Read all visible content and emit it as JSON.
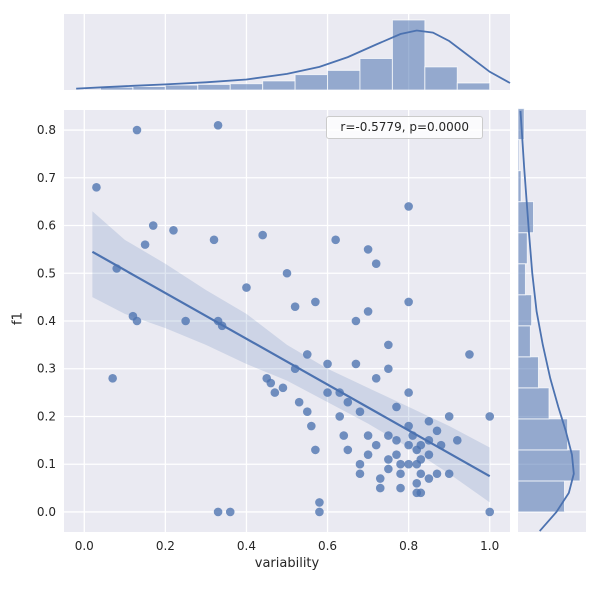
{
  "figure": {
    "colors": {
      "panel_bg": "#eaeaf2",
      "grid": "#ffffff",
      "accent": "#4c72b0",
      "scatter": "#4c72b0",
      "band": "rgba(76,114,176,0.18)",
      "hist_fill": "rgba(76,114,176,0.55)",
      "hist_edge": "rgba(255,255,255,0.7)",
      "tick_text": "#262626"
    }
  },
  "annotation": {
    "label": "r=-0.5779, p=0.0000"
  },
  "chart_data": {
    "type": "scatter",
    "title": "",
    "xlabel": "variability",
    "ylabel": "f1",
    "xlim": [
      -0.05,
      1.05
    ],
    "ylim": [
      -0.042,
      0.842
    ],
    "xticks": [
      0.0,
      0.2,
      0.4,
      0.6,
      0.8,
      1.0
    ],
    "yticks": [
      0.0,
      0.1,
      0.2,
      0.3,
      0.4,
      0.5,
      0.6,
      0.7,
      0.8
    ],
    "grid": true,
    "legend_position": "none",
    "points": [
      [
        0.03,
        0.68
      ],
      [
        0.07,
        0.28
      ],
      [
        0.08,
        0.51
      ],
      [
        0.12,
        0.41
      ],
      [
        0.13,
        0.8
      ],
      [
        0.13,
        0.4
      ],
      [
        0.15,
        0.56
      ],
      [
        0.17,
        0.6
      ],
      [
        0.22,
        0.59
      ],
      [
        0.25,
        0.4
      ],
      [
        0.32,
        0.57
      ],
      [
        0.33,
        0.81
      ],
      [
        0.33,
        0.4
      ],
      [
        0.34,
        0.39
      ],
      [
        0.33,
        0.0
      ],
      [
        0.36,
        0.0
      ],
      [
        0.4,
        0.47
      ],
      [
        0.44,
        0.58
      ],
      [
        0.45,
        0.28
      ],
      [
        0.46,
        0.27
      ],
      [
        0.47,
        0.25
      ],
      [
        0.49,
        0.26
      ],
      [
        0.5,
        0.5
      ],
      [
        0.52,
        0.43
      ],
      [
        0.52,
        0.3
      ],
      [
        0.53,
        0.23
      ],
      [
        0.55,
        0.33
      ],
      [
        0.55,
        0.21
      ],
      [
        0.56,
        0.18
      ],
      [
        0.57,
        0.44
      ],
      [
        0.57,
        0.13
      ],
      [
        0.58,
        0.02
      ],
      [
        0.58,
        0.0
      ],
      [
        0.6,
        0.31
      ],
      [
        0.6,
        0.25
      ],
      [
        0.62,
        0.57
      ],
      [
        0.63,
        0.25
      ],
      [
        0.63,
        0.2
      ],
      [
        0.64,
        0.16
      ],
      [
        0.65,
        0.23
      ],
      [
        0.65,
        0.13
      ],
      [
        0.67,
        0.4
      ],
      [
        0.67,
        0.31
      ],
      [
        0.68,
        0.21
      ],
      [
        0.68,
        0.1
      ],
      [
        0.68,
        0.08
      ],
      [
        0.7,
        0.55
      ],
      [
        0.7,
        0.42
      ],
      [
        0.7,
        0.16
      ],
      [
        0.7,
        0.12
      ],
      [
        0.72,
        0.52
      ],
      [
        0.72,
        0.28
      ],
      [
        0.72,
        0.14
      ],
      [
        0.73,
        0.07
      ],
      [
        0.73,
        0.05
      ],
      [
        0.75,
        0.35
      ],
      [
        0.75,
        0.3
      ],
      [
        0.75,
        0.16
      ],
      [
        0.75,
        0.11
      ],
      [
        0.75,
        0.09
      ],
      [
        0.77,
        0.22
      ],
      [
        0.77,
        0.15
      ],
      [
        0.77,
        0.12
      ],
      [
        0.78,
        0.1
      ],
      [
        0.78,
        0.08
      ],
      [
        0.78,
        0.05
      ],
      [
        0.8,
        0.64
      ],
      [
        0.8,
        0.44
      ],
      [
        0.8,
        0.25
      ],
      [
        0.8,
        0.18
      ],
      [
        0.8,
        0.14
      ],
      [
        0.8,
        0.1
      ],
      [
        0.81,
        0.16
      ],
      [
        0.82,
        0.13
      ],
      [
        0.82,
        0.1
      ],
      [
        0.82,
        0.06
      ],
      [
        0.82,
        0.04
      ],
      [
        0.83,
        0.14
      ],
      [
        0.83,
        0.11
      ],
      [
        0.83,
        0.08
      ],
      [
        0.83,
        0.04
      ],
      [
        0.85,
        0.19
      ],
      [
        0.85,
        0.15
      ],
      [
        0.85,
        0.12
      ],
      [
        0.85,
        0.07
      ],
      [
        0.87,
        0.17
      ],
      [
        0.87,
        0.08
      ],
      [
        0.88,
        0.14
      ],
      [
        0.9,
        0.2
      ],
      [
        0.9,
        0.08
      ],
      [
        0.92,
        0.15
      ],
      [
        0.95,
        0.33
      ],
      [
        1.0,
        0.2
      ],
      [
        1.0,
        0.0
      ]
    ],
    "regression_line": {
      "x": [
        0.02,
        1.0
      ],
      "y": [
        0.545,
        0.075
      ]
    },
    "confidence_band": {
      "x": [
        0.02,
        0.1,
        0.2,
        0.3,
        0.4,
        0.5,
        0.6,
        0.7,
        0.8,
        0.9,
        1.0
      ],
      "upper": [
        0.63,
        0.57,
        0.52,
        0.465,
        0.415,
        0.35,
        0.3,
        0.26,
        0.22,
        0.18,
        0.135
      ],
      "lower": [
        0.45,
        0.415,
        0.385,
        0.35,
        0.31,
        0.275,
        0.23,
        0.185,
        0.135,
        0.08,
        0.02
      ]
    },
    "marginal_x": {
      "hist": {
        "bin_start": 0.04,
        "bin_width": 0.08,
        "heights": [
          0.04,
          0.05,
          0.07,
          0.08,
          0.09,
          0.13,
          0.22,
          0.28,
          0.45,
          1.0,
          0.33,
          0.1
        ]
      },
      "kde": {
        "x": [
          -0.02,
          0.05,
          0.12,
          0.2,
          0.3,
          0.4,
          0.5,
          0.58,
          0.65,
          0.72,
          0.78,
          0.82,
          0.86,
          0.9,
          0.95,
          1.0,
          1.05
        ],
        "density": [
          0.02,
          0.04,
          0.06,
          0.08,
          0.11,
          0.15,
          0.23,
          0.33,
          0.47,
          0.65,
          0.8,
          0.85,
          0.82,
          0.7,
          0.48,
          0.26,
          0.1
        ]
      }
    },
    "marginal_y": {
      "hist": {
        "bin_start": 0.0,
        "bin_width": 0.065,
        "heights": [
          0.75,
          1.0,
          0.8,
          0.5,
          0.33,
          0.2,
          0.22,
          0.12,
          0.15,
          0.25,
          0.05,
          0.02,
          0.1
        ]
      },
      "kde": {
        "y": [
          0.84,
          0.78,
          0.72,
          0.65,
          0.58,
          0.5,
          0.42,
          0.35,
          0.28,
          0.22,
          0.17,
          0.12,
          0.08,
          0.04,
          0.0,
          -0.04
        ],
        "density": [
          0.04,
          0.07,
          0.1,
          0.14,
          0.18,
          0.23,
          0.3,
          0.4,
          0.52,
          0.65,
          0.77,
          0.87,
          0.9,
          0.82,
          0.62,
          0.35
        ]
      }
    }
  }
}
